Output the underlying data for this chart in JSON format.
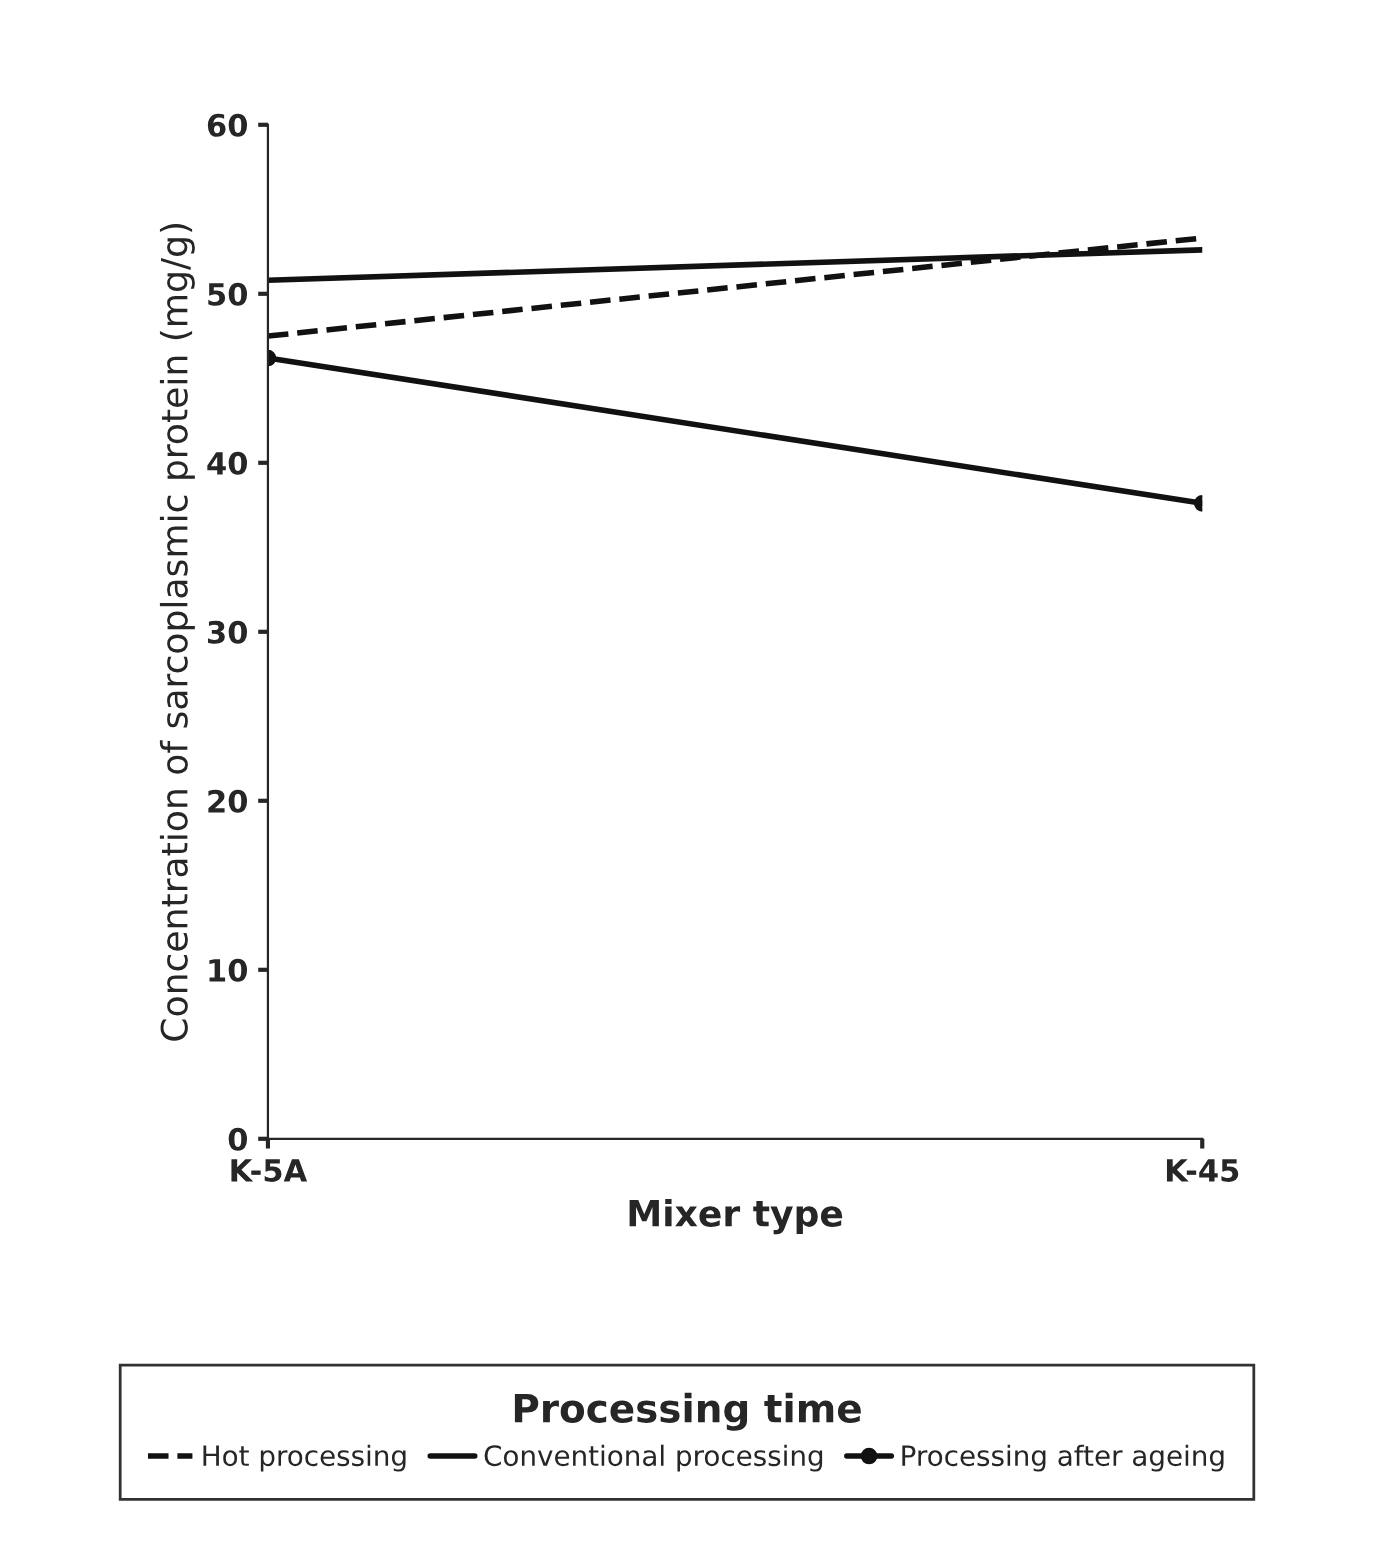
{
  "chart_data": {
    "type": "line",
    "xlabel": "Mixer type",
    "ylabel": "Concentration of sarcoplasmic protein (mg/g)",
    "categories": [
      "K-5A",
      "K-45"
    ],
    "ylim": [
      0,
      60
    ],
    "yticks": [
      0,
      10,
      20,
      30,
      40,
      50,
      60
    ],
    "legend": "bottom",
    "legend_title": "Processing time",
    "grid": false,
    "series": [
      {
        "name": "Hot processing",
        "color": "#111111",
        "values": [
          47.5,
          53.3
        ],
        "line_style": "dashed",
        "marker": "none"
      },
      {
        "name": "Conventional processing",
        "color": "#111111",
        "values": [
          50.8,
          52.6
        ],
        "line_style": "solid",
        "marker": "none"
      },
      {
        "name": "Processing after ageing",
        "color": "#111111",
        "values": [
          46.2,
          37.6
        ],
        "line_style": "solid",
        "marker": "circle"
      }
    ]
  }
}
